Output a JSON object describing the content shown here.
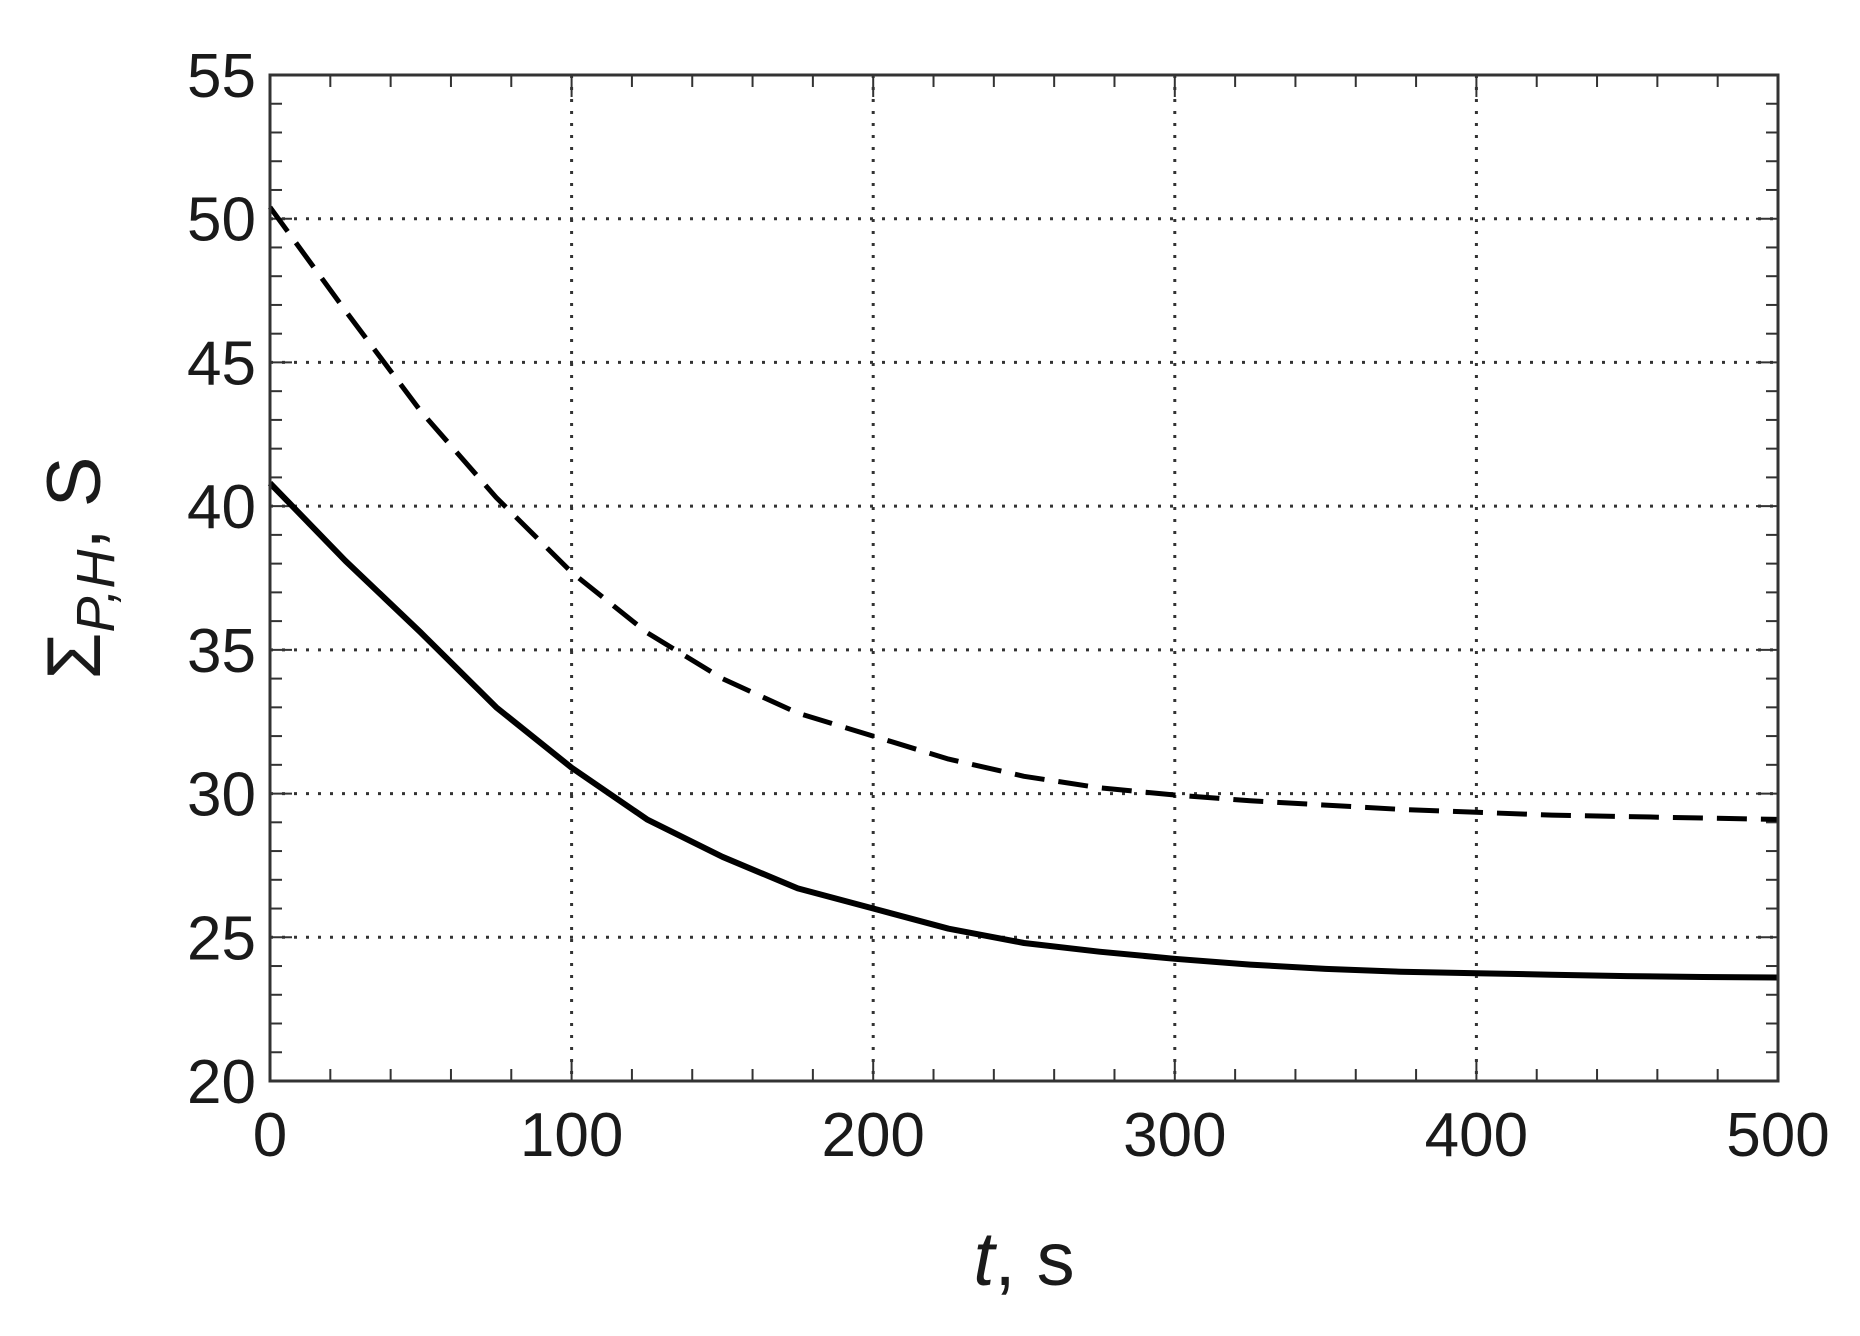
{
  "chart_data": {
    "type": "line",
    "title": "",
    "xlabel": {
      "var": "t",
      "unit": ", s"
    },
    "ylabel": {
      "symbol": "Σ",
      "subscript": "P,H",
      "suffix": ", S"
    },
    "xlim": [
      0,
      500
    ],
    "ylim": [
      20,
      55
    ],
    "x_ticks": [
      0,
      100,
      200,
      300,
      400,
      500
    ],
    "x_tick_labels": [
      "0",
      "100",
      "200",
      "300",
      "400",
      "500"
    ],
    "y_ticks": [
      20,
      25,
      30,
      35,
      40,
      45,
      50,
      55
    ],
    "y_tick_labels": [
      "20",
      "25",
      "30",
      "35",
      "40",
      "45",
      "50",
      "55"
    ],
    "x_minor_step": 20,
    "y_minor_step": 1,
    "grid": true,
    "grid_style": "dotted",
    "legend": false,
    "colors": {
      "line": "#000000",
      "grid": "#333333",
      "axes": "#333333"
    },
    "series": [
      {
        "line_style": "dashed",
        "x": [
          0,
          25,
          50,
          75,
          100,
          125,
          150,
          175,
          200,
          225,
          250,
          275,
          300,
          325,
          350,
          375,
          400,
          425,
          450,
          475,
          500
        ],
        "y": [
          50.4,
          46.8,
          43.3,
          40.3,
          37.7,
          35.6,
          34.0,
          32.8,
          32.0,
          31.2,
          30.6,
          30.2,
          29.95,
          29.75,
          29.6,
          29.45,
          29.35,
          29.25,
          29.2,
          29.15,
          29.1
        ]
      },
      {
        "line_style": "solid",
        "x": [
          0,
          25,
          50,
          75,
          100,
          125,
          150,
          175,
          200,
          225,
          250,
          275,
          300,
          325,
          350,
          375,
          400,
          425,
          450,
          475,
          500
        ],
        "y": [
          40.8,
          38.1,
          35.6,
          33.0,
          30.9,
          29.1,
          27.8,
          26.7,
          26.0,
          25.3,
          24.8,
          24.5,
          24.25,
          24.05,
          23.9,
          23.8,
          23.75,
          23.7,
          23.65,
          23.62,
          23.6
        ]
      }
    ]
  }
}
